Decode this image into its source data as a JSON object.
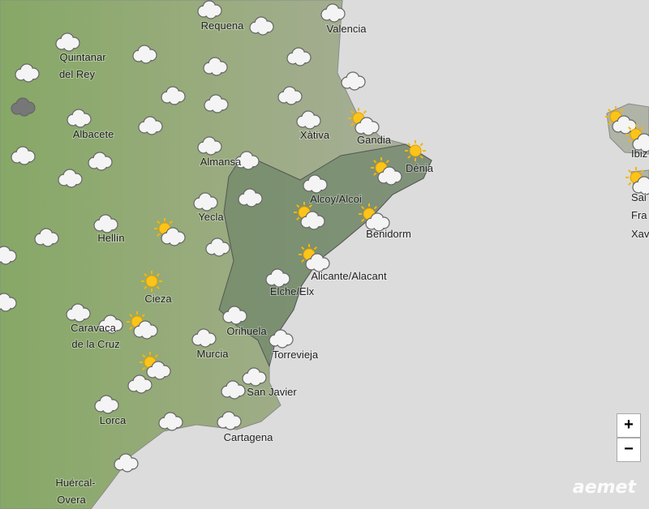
{
  "places": [
    "Requena",
    "Valencia",
    "Quintanar",
    "del Rey",
    "Albacete",
    "Xàtiva",
    "Gandia",
    "Almansa",
    "Dénia",
    "Alcoy/Alcoi",
    "Yecla",
    "Hellín",
    "Benidorm",
    "Alicante/Alacant",
    "Elche/Elx",
    "Cieza",
    "Caravaca",
    "de la Cruz",
    "Orihuela",
    "Murcia",
    "Torrevieja",
    "San Javier",
    "Lorca",
    "Cartagena",
    "Huércal-",
    "Overa",
    "Ibiz",
    "Sai",
    "Fra",
    "Xav"
  ],
  "zoom": {
    "in": "+",
    "out": "−"
  },
  "logo": "aemet"
}
